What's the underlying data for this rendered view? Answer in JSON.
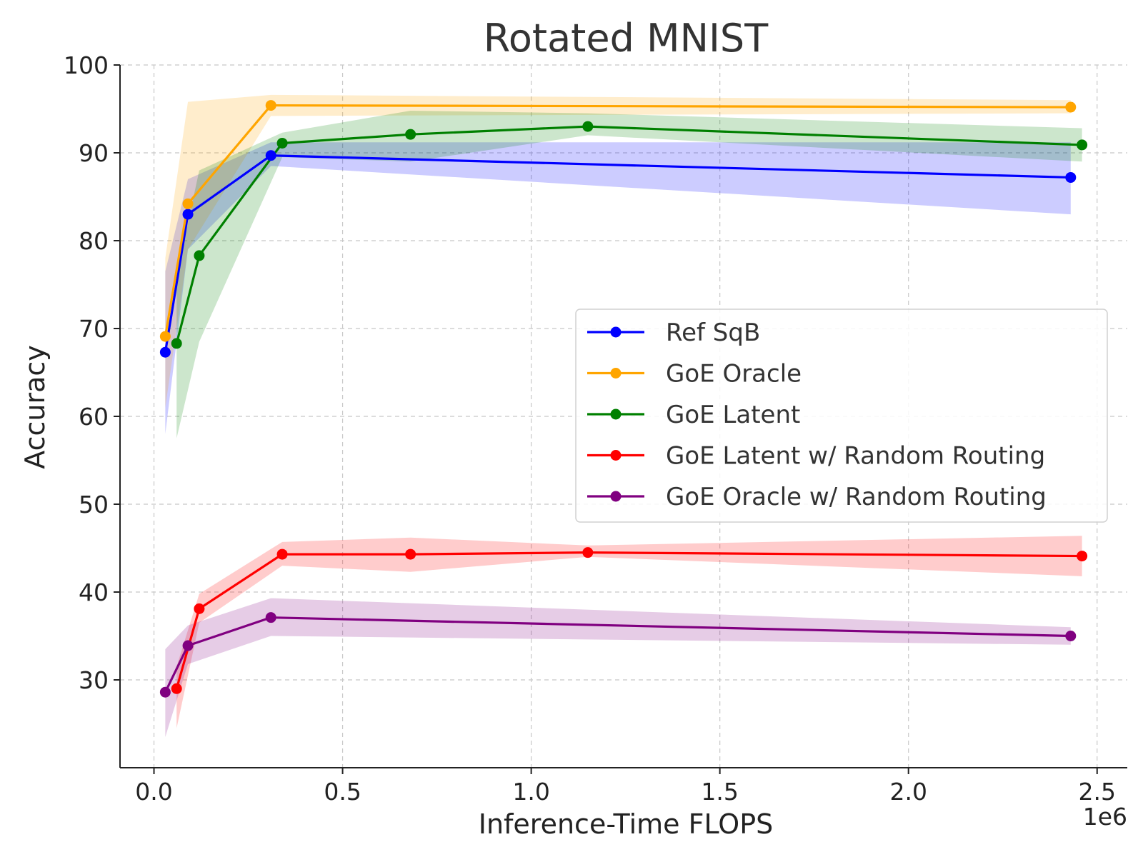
{
  "chart_data": {
    "type": "line",
    "title": "Rotated MNIST",
    "xlabel": "Inference-Time FLOPS",
    "ylabel": "Accuracy",
    "x_multiplier_label": "1e6",
    "xlim": [
      -0.09,
      2.58
    ],
    "ylim": [
      20,
      100
    ],
    "x_ticks": [
      0.0,
      0.5,
      1.0,
      1.5,
      2.0,
      2.5
    ],
    "x_tick_labels": [
      "0.0",
      "0.5",
      "1.0",
      "1.5",
      "2.0",
      "2.5"
    ],
    "y_ticks": [
      30,
      40,
      50,
      60,
      70,
      80,
      90,
      100
    ],
    "y_tick_labels": [
      "30",
      "40",
      "50",
      "60",
      "70",
      "80",
      "90",
      "100"
    ],
    "grid": true,
    "legend_position": "center-right",
    "series": [
      {
        "name": "Ref SqB",
        "color": "#0000ff",
        "x": [
          0.03,
          0.09,
          0.31,
          2.43
        ],
        "y": [
          67.3,
          83.0,
          89.7,
          87.2
        ],
        "lower": [
          58.0,
          79.0,
          88.5,
          83.0
        ],
        "upper": [
          76.5,
          87.0,
          91.2,
          91.2
        ]
      },
      {
        "name": "GoE Oracle",
        "color": "#ffa500",
        "x": [
          0.03,
          0.09,
          0.31,
          2.43
        ],
        "y": [
          69.1,
          84.2,
          95.4,
          95.2
        ],
        "lower": [
          61.0,
          79.0,
          94.2,
          94.5
        ],
        "upper": [
          78.0,
          95.8,
          96.6,
          96.0
        ]
      },
      {
        "name": "GoE Latent",
        "color": "#008000",
        "x": [
          0.06,
          0.12,
          0.34,
          0.68,
          1.15,
          2.46
        ],
        "y": [
          68.3,
          78.3,
          91.1,
          92.1,
          93.0,
          90.9
        ],
        "lower": [
          57.5,
          68.5,
          89.5,
          89.0,
          92.0,
          89.0
        ],
        "upper": [
          76.0,
          88.0,
          92.3,
          94.8,
          94.5,
          92.8
        ]
      },
      {
        "name": "GoE Latent w/ Random Routing",
        "color": "#ff0000",
        "x": [
          0.06,
          0.12,
          0.34,
          0.68,
          1.15,
          2.46
        ],
        "y": [
          29.0,
          38.1,
          44.3,
          44.3,
          44.5,
          44.1
        ],
        "lower": [
          24.5,
          36.5,
          43.0,
          42.3,
          44.0,
          41.8
        ],
        "upper": [
          31.5,
          39.8,
          45.7,
          46.2,
          45.3,
          46.4
        ]
      },
      {
        "name": "GoE Oracle w/ Random Routing",
        "color": "#800080",
        "x": [
          0.03,
          0.09,
          0.31,
          2.43
        ],
        "y": [
          28.6,
          33.9,
          37.1,
          35.0
        ],
        "lower": [
          23.5,
          31.8,
          35.0,
          34.0
        ],
        "upper": [
          33.5,
          36.2,
          39.3,
          36.0
        ]
      }
    ]
  }
}
